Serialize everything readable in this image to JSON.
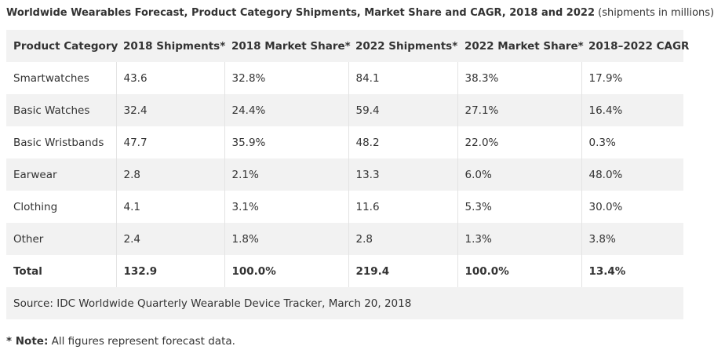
{
  "caption": {
    "title": "Worldwide Wearables Forecast, Product Category Shipments, Market Share and CAGR, 2018 and 2022",
    "subtitle": "(shipments in millions)"
  },
  "table": {
    "headers": [
      "Product Category",
      "2018 Shipments*",
      "2018 Market Share*",
      "2022 Shipments*",
      "2022 Market Share*",
      "2018–2022 CAGR"
    ],
    "rows": [
      [
        "Smartwatches",
        "43.6",
        "32.8%",
        "84.1",
        "38.3%",
        "17.9%"
      ],
      [
        "Basic Watches",
        "32.4",
        "24.4%",
        "59.4",
        "27.1%",
        "16.4%"
      ],
      [
        "Basic Wristbands",
        "47.7",
        "35.9%",
        "48.2",
        "22.0%",
        "0.3%"
      ],
      [
        "Earwear",
        "2.8",
        "2.1%",
        "13.3",
        "6.0%",
        "48.0%"
      ],
      [
        "Clothing",
        "4.1",
        "3.1%",
        "11.6",
        "5.3%",
        "30.0%"
      ],
      [
        "Other",
        "2.4",
        "1.8%",
        "2.8",
        "1.3%",
        "3.8%"
      ]
    ],
    "total": [
      "Total",
      "132.9",
      "100.0%",
      "219.4",
      "100.0%",
      "13.4%"
    ],
    "source": "Source: IDC Worldwide Quarterly Wearable Device Tracker, March 20, 2018"
  },
  "note": {
    "label": "* Note:",
    "text": "All figures represent forecast data."
  }
}
